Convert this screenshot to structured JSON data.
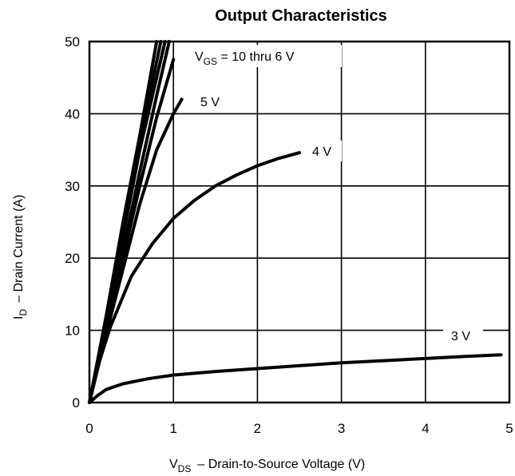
{
  "chart_data": {
    "type": "line",
    "title": "Output Characteristics",
    "xlabel": {
      "symbol": "V",
      "subscript": "DS",
      "text": "–  Drain-to-Source Voltage (V)"
    },
    "ylabel": {
      "symbol": "I",
      "subscript": "D",
      "text": "–  Drain Current (A)"
    },
    "xlim": [
      0,
      5
    ],
    "ylim": [
      0,
      50
    ],
    "xticks": [
      0,
      1,
      2,
      3,
      4,
      5
    ],
    "yticks": [
      0,
      10,
      20,
      30,
      40,
      50
    ],
    "x_tick_labels": [
      "0",
      "1",
      "2",
      "3",
      "4",
      "5"
    ],
    "y_tick_labels": [
      "0",
      "10",
      "20",
      "30",
      "40",
      "50"
    ],
    "grid": true,
    "series": [
      {
        "label": {
          "symbol": "V",
          "subscript": "GS",
          "text": " = 10 thru 6 V"
        },
        "points": [
          [
            0,
            0
          ],
          [
            0.2,
            12
          ],
          [
            0.4,
            25
          ],
          [
            0.6,
            37
          ],
          [
            0.8,
            50
          ]
        ]
      },
      {
        "points": [
          [
            0,
            0
          ],
          [
            0.2,
            11.5
          ],
          [
            0.4,
            24
          ],
          [
            0.6,
            36
          ],
          [
            0.85,
            50
          ]
        ]
      },
      {
        "points": [
          [
            0,
            0
          ],
          [
            0.2,
            11
          ],
          [
            0.4,
            23
          ],
          [
            0.6,
            35
          ],
          [
            0.9,
            50
          ]
        ]
      },
      {
        "points": [
          [
            0,
            0
          ],
          [
            0.2,
            10
          ],
          [
            0.4,
            21
          ],
          [
            0.6,
            32
          ],
          [
            0.8,
            42.5
          ],
          [
            0.95,
            50
          ]
        ]
      },
      {
        "points": [
          [
            0,
            0
          ],
          [
            0.2,
            10
          ],
          [
            0.4,
            20
          ],
          [
            0.6,
            30
          ],
          [
            0.8,
            39.5
          ],
          [
            1.0,
            47.5
          ]
        ]
      },
      {
        "label": {
          "text": "5 V"
        },
        "points": [
          [
            0,
            0
          ],
          [
            0.2,
            9.5
          ],
          [
            0.4,
            18.5
          ],
          [
            0.6,
            27.5
          ],
          [
            0.8,
            35
          ],
          [
            1.0,
            40
          ],
          [
            1.1,
            42
          ]
        ]
      },
      {
        "label": {
          "text": "4 V"
        },
        "points": [
          [
            0,
            0
          ],
          [
            0.1,
            5
          ],
          [
            0.25,
            10.5
          ],
          [
            0.5,
            17.5
          ],
          [
            0.75,
            22
          ],
          [
            1.0,
            25.5
          ],
          [
            1.25,
            28
          ],
          [
            1.5,
            30
          ],
          [
            1.75,
            31.5
          ],
          [
            2.0,
            32.8
          ],
          [
            2.25,
            33.8
          ],
          [
            2.5,
            34.6
          ]
        ]
      },
      {
        "label": {
          "text": "3 V"
        },
        "points": [
          [
            0,
            0
          ],
          [
            0.1,
            1
          ],
          [
            0.2,
            1.8
          ],
          [
            0.4,
            2.6
          ],
          [
            0.7,
            3.3
          ],
          [
            1.0,
            3.8
          ],
          [
            1.5,
            4.3
          ],
          [
            2.0,
            4.7
          ],
          [
            2.5,
            5.1
          ],
          [
            3.0,
            5.5
          ],
          [
            3.5,
            5.8
          ],
          [
            4.0,
            6.1
          ],
          [
            4.5,
            6.4
          ],
          [
            4.9,
            6.6
          ]
        ]
      }
    ]
  }
}
